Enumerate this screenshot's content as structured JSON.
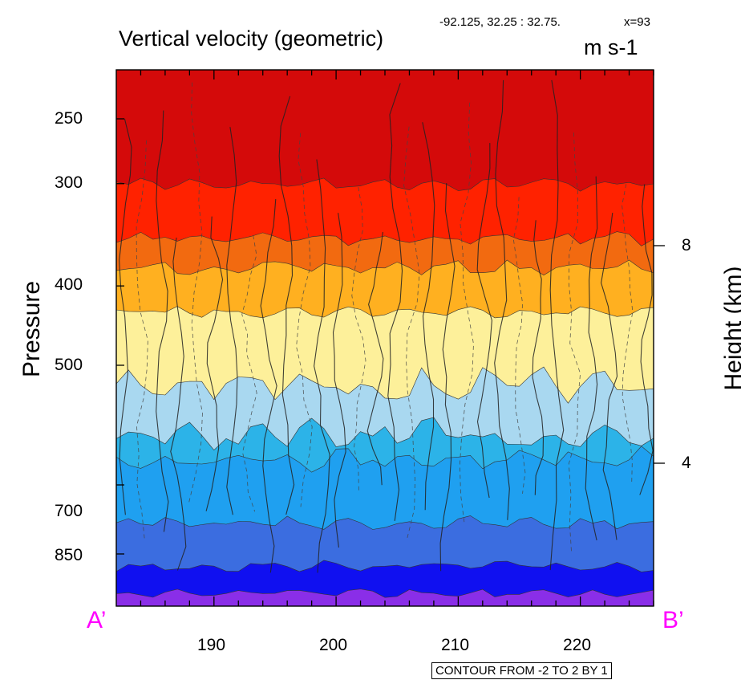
{
  "header": {
    "title": "Vertical velocity (geometric)",
    "units": "m s-1",
    "location": "-92.125, 32.25 : 32.75.",
    "x_index": "x=93"
  },
  "axes": {
    "left_label": "Pressure",
    "right_label": "Height (km)",
    "left_ticks": [
      "250",
      "300",
      "400",
      "500",
      "700",
      "850"
    ],
    "right_ticks": [
      "8",
      "4"
    ],
    "bottom_ticks": [
      "190",
      "200",
      "210",
      "220"
    ]
  },
  "cross_section": {
    "start_label": "A’",
    "end_label": "B’"
  },
  "contour_info": "CONTOUR FROM -2 TO 2 BY 1",
  "colors": {
    "fill_bands_top_to_bottom": [
      "#d40a0a",
      "#ff2200",
      "#f26a10",
      "#ffb020",
      "#fdf09a",
      "#a9d8f0",
      "#2cb3e8",
      "#1fa0f0",
      "#3b6de0",
      "#1010f0",
      "#8a2ee8"
    ],
    "cross_section_label": "#ff00ff"
  },
  "chart_data": {
    "type": "contour",
    "title": "Vertical velocity (geometric)",
    "units": "m s-1",
    "xlabel": "",
    "ylabel": "Pressure",
    "y2label": "Height (km)",
    "xlim": [
      182,
      226
    ],
    "ylim_pressure": [
      1000,
      210
    ],
    "y_scale": "log",
    "x_ticks": [
      190,
      200,
      210,
      220
    ],
    "y_ticks": [
      250,
      300,
      400,
      500,
      700,
      850
    ],
    "y2_ticks": [
      4,
      8
    ],
    "contour_levels": {
      "min": -2,
      "max": 2,
      "step": 1
    },
    "filled_band_boundaries_pressure": [
      300,
      350,
      380,
      430,
      530,
      610,
      650,
      780,
      880,
      950,
      990
    ]
  }
}
